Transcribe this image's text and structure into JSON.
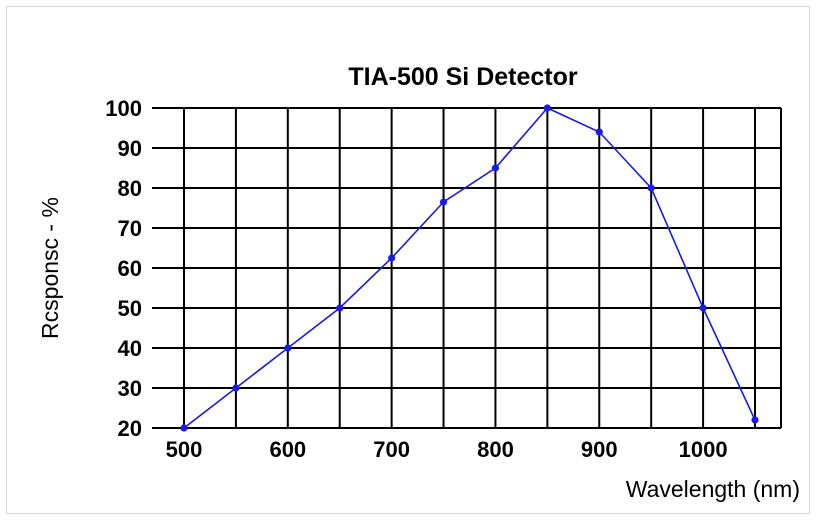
{
  "chart_data": {
    "type": "line",
    "title": "TIA-500 Si Detector",
    "xlabel": "Wavelength (nm)",
    "ylabel": "Rcsponsc - %",
    "xlim": [
      500,
      1050
    ],
    "ylim": [
      20,
      100
    ],
    "x_ticks": [
      500,
      600,
      700,
      800,
      900,
      1000
    ],
    "x_tick_labels": [
      "500",
      "600",
      "700",
      "800",
      "900",
      "1000"
    ],
    "y_ticks": [
      20,
      30,
      40,
      50,
      60,
      70,
      80,
      90,
      100
    ],
    "y_tick_labels": [
      "20",
      "30",
      "40",
      "50",
      "60",
      "70",
      "80",
      "90",
      "100"
    ],
    "vertical_grid": [
      500,
      550,
      600,
      650,
      700,
      750,
      800,
      850,
      900,
      950,
      1000,
      1050
    ],
    "grid": true,
    "colors": {
      "line": "#1a1ae6",
      "grid": "#000000"
    },
    "series": [
      {
        "x": [
          500,
          550,
          600,
          650,
          700,
          750,
          800,
          850,
          900,
          950,
          1000,
          1050
        ],
        "y": [
          20,
          30,
          40,
          50,
          62.5,
          76.5,
          85,
          100,
          94,
          80,
          50,
          22
        ]
      }
    ]
  }
}
